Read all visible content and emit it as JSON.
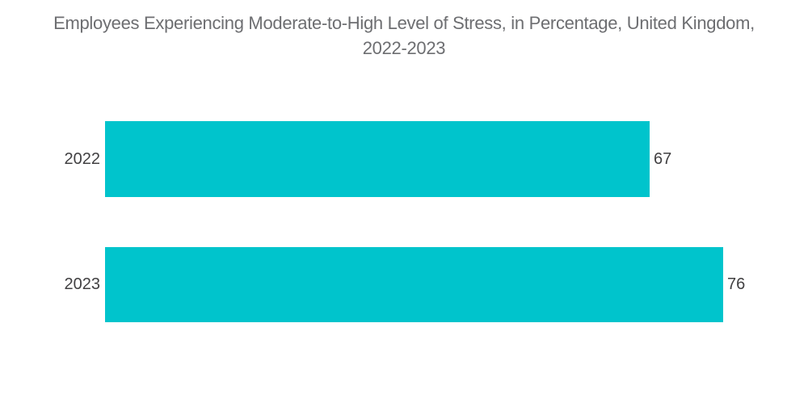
{
  "chart_data": {
    "type": "bar",
    "orientation": "horizontal",
    "title": "Employees Experiencing Moderate-to-High Level of Stress, in Percentage, United Kingdom, 2022-2023",
    "categories": [
      "2022",
      "2023"
    ],
    "values": [
      67,
      76
    ],
    "xlim": [
      0,
      76
    ],
    "grid": false,
    "legend": false,
    "value_label_position": "outside-end",
    "colors": {
      "bar": "#00C4CC",
      "title_text": "#6D6E71",
      "label_text": "#414042",
      "background": "#FFFFFF"
    }
  }
}
